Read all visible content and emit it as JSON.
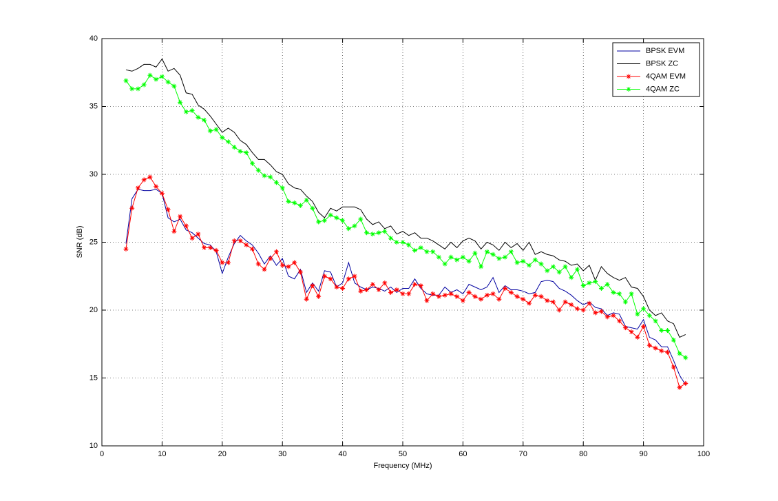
{
  "chart_data": {
    "type": "line",
    "x_label": "Frequency (MHz)",
    "y_label": "SNR (dB)",
    "x": [
      4,
      5,
      6,
      7,
      8,
      9,
      10,
      11,
      12,
      13,
      14,
      15,
      16,
      17,
      18,
      19,
      20,
      21,
      22,
      23,
      24,
      25,
      26,
      27,
      28,
      29,
      30,
      31,
      32,
      33,
      34,
      35,
      36,
      37,
      38,
      39,
      40,
      41,
      42,
      43,
      44,
      45,
      46,
      47,
      48,
      49,
      50,
      51,
      52,
      53,
      54,
      55,
      56,
      57,
      58,
      59,
      60,
      61,
      62,
      63,
      64,
      65,
      66,
      67,
      68,
      69,
      70,
      71,
      72,
      73,
      74,
      75,
      76,
      77,
      78,
      79,
      80,
      81,
      82,
      83,
      84,
      85,
      86,
      87,
      88,
      89,
      90,
      91,
      92,
      93,
      94,
      95,
      96,
      97
    ],
    "series": [
      {
        "name": "BPSK EVM",
        "color": "#0000a0",
        "marker": "none",
        "values": [
          24.9,
          28.2,
          28.9,
          28.8,
          28.8,
          28.9,
          28.6,
          26.8,
          26.5,
          26.7,
          25.9,
          25.7,
          25.3,
          24.9,
          24.8,
          24.3,
          22.7,
          23.9,
          24.9,
          25.5,
          25.1,
          24.8,
          24.2,
          23.4,
          24.0,
          23.3,
          23.8,
          22.5,
          22.3,
          23.0,
          21.3,
          22.0,
          21.4,
          22.9,
          22.8,
          21.7,
          22.0,
          23.5,
          22.0,
          21.7,
          21.5,
          21.7,
          21.6,
          21.4,
          21.7,
          21.3,
          21.6,
          21.6,
          22.3,
          21.6,
          21.2,
          21.1,
          21.1,
          21.7,
          21.3,
          21.5,
          21.2,
          21.9,
          21.7,
          21.5,
          21.7,
          22.4,
          21.3,
          21.8,
          21.5,
          21.5,
          21.4,
          21.2,
          21.3,
          22.1,
          22.2,
          22.1,
          21.6,
          21.4,
          21.1,
          20.7,
          20.4,
          20.6,
          20.2,
          20.1,
          19.6,
          19.8,
          19.7,
          18.8,
          18.7,
          18.6,
          19.3,
          18.0,
          17.8,
          17.3,
          17.3,
          16.3,
          15.2,
          14.5
        ]
      },
      {
        "name": "BPSK ZC",
        "color": "#000000",
        "marker": "none",
        "values": [
          37.7,
          37.6,
          37.8,
          38.1,
          38.1,
          37.9,
          38.5,
          37.6,
          37.8,
          37.3,
          36.0,
          35.9,
          35.1,
          34.8,
          34.3,
          33.7,
          33.1,
          33.4,
          33.1,
          32.5,
          32.2,
          31.6,
          31.1,
          31.1,
          30.7,
          30.2,
          30.0,
          29.3,
          29.0,
          28.9,
          28.4,
          28.0,
          27.2,
          26.8,
          27.5,
          27.3,
          27.6,
          27.6,
          27.6,
          27.4,
          26.7,
          26.3,
          26.5,
          26.0,
          26.2,
          25.6,
          25.8,
          25.5,
          25.7,
          25.3,
          25.3,
          25.1,
          24.8,
          24.5,
          25.0,
          24.6,
          25.1,
          25.3,
          25.1,
          24.5,
          25.0,
          24.8,
          24.4,
          25.0,
          24.6,
          24.9,
          24.4,
          25.0,
          24.1,
          24.3,
          24.1,
          24.0,
          23.7,
          23.6,
          23.3,
          23.4,
          22.9,
          23.3,
          22.2,
          23.2,
          22.7,
          22.4,
          22.2,
          22.4,
          21.7,
          21.6,
          21.0,
          20.0,
          19.6,
          19.8,
          19.2,
          19.0,
          18.0,
          18.2
        ]
      },
      {
        "name": "4QAM EVM",
        "color": "#ff0000",
        "marker": "asterisk",
        "values": [
          24.5,
          27.5,
          29.0,
          29.6,
          29.8,
          29.1,
          28.6,
          27.4,
          25.8,
          26.9,
          26.2,
          25.3,
          25.6,
          24.6,
          24.6,
          24.4,
          23.5,
          23.5,
          25.1,
          25.1,
          24.8,
          24.5,
          23.4,
          23.0,
          23.8,
          24.3,
          23.3,
          23.2,
          23.5,
          22.8,
          20.8,
          21.8,
          21.0,
          22.5,
          22.3,
          21.7,
          21.6,
          22.3,
          22.5,
          21.4,
          21.5,
          21.9,
          21.5,
          22.0,
          21.3,
          21.5,
          21.2,
          21.2,
          21.9,
          21.8,
          20.7,
          21.2,
          21.0,
          21.1,
          21.2,
          21.0,
          20.7,
          21.3,
          21.0,
          20.8,
          21.1,
          21.2,
          20.8,
          21.6,
          21.3,
          21.0,
          20.8,
          20.5,
          21.1,
          21.0,
          20.7,
          20.6,
          20.0,
          20.6,
          20.4,
          20.1,
          20.0,
          20.5,
          19.8,
          19.9,
          19.5,
          19.6,
          19.2,
          18.7,
          18.4,
          18.0,
          18.8,
          17.4,
          17.2,
          17.0,
          16.9,
          15.8,
          14.3,
          14.6
        ]
      },
      {
        "name": "4QAM ZC",
        "color": "#00ff00",
        "marker": "asterisk",
        "values": [
          36.9,
          36.3,
          36.3,
          36.6,
          37.3,
          37.0,
          37.2,
          36.8,
          36.5,
          35.3,
          34.6,
          34.7,
          34.2,
          34.0,
          33.2,
          33.3,
          32.7,
          32.4,
          32.0,
          31.7,
          31.6,
          30.8,
          30.3,
          29.9,
          29.8,
          29.4,
          29.0,
          28.0,
          27.9,
          27.7,
          28.1,
          27.5,
          26.5,
          26.6,
          27.0,
          26.8,
          26.6,
          26.0,
          26.2,
          26.7,
          25.7,
          25.6,
          25.7,
          25.8,
          25.3,
          25.0,
          25.0,
          24.8,
          24.4,
          24.6,
          24.3,
          24.3,
          23.9,
          23.4,
          23.9,
          23.7,
          23.9,
          23.6,
          24.2,
          23.2,
          24.3,
          24.1,
          23.8,
          23.9,
          24.3,
          23.5,
          23.6,
          23.3,
          23.7,
          23.4,
          22.9,
          23.2,
          22.8,
          23.2,
          22.4,
          23.0,
          21.8,
          22.0,
          22.1,
          21.6,
          21.9,
          21.3,
          21.2,
          20.6,
          21.2,
          19.7,
          20.1,
          19.6,
          19.2,
          18.5,
          18.5,
          17.8,
          16.8,
          16.5
        ]
      }
    ],
    "xlim": [
      0,
      100
    ],
    "xticks": [
      0,
      10,
      20,
      30,
      40,
      50,
      60,
      70,
      80,
      90,
      100
    ],
    "ylim": [
      10,
      40
    ],
    "yticks": [
      10,
      15,
      20,
      25,
      30,
      35,
      40
    ],
    "grid": true,
    "legend": "northeast"
  }
}
